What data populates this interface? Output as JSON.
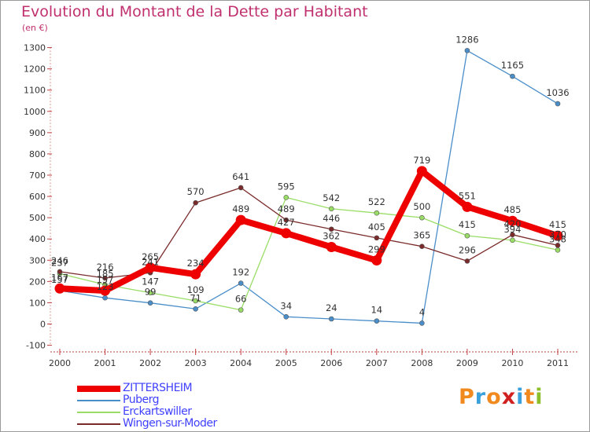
{
  "header": {
    "title": "Evolution du Montant de la Dette par Habitant",
    "unit": "(en €)"
  },
  "logo": {
    "text": "Proxiti",
    "colors": [
      "#f08a1e",
      "#3aa0dc",
      "#f08a1e",
      "#d02020",
      "#3aa0dc",
      "#f08a1e",
      "#8cbf2a"
    ]
  },
  "chart_data": {
    "type": "line",
    "x": [
      "2000",
      "2001",
      "2002",
      "2003",
      "2004",
      "2005",
      "2006",
      "2007",
      "2008",
      "2009",
      "2010",
      "2011"
    ],
    "ylim": [
      -100,
      1300
    ],
    "yticks": [
      -100,
      0,
      100,
      200,
      300,
      400,
      500,
      600,
      700,
      800,
      900,
      1000,
      1100,
      1200,
      1300
    ],
    "grid": false,
    "legend": "bottom-left",
    "series": [
      {
        "name": "ZITTERSHEIM",
        "color": "#ee0000",
        "values": [
          167,
          157,
          265,
          234,
          489,
          427,
          362,
          299,
          719,
          551,
          485,
          415
        ],
        "labels": [
          "167",
          "157",
          "265",
          "234",
          "489",
          "427",
          "362",
          "299",
          "719",
          "551",
          "485",
          "415"
        ]
      },
      {
        "name": "Puberg",
        "color": "#4a8ec9",
        "values": [
          157,
          123,
          99,
          71,
          192,
          34,
          24,
          14,
          4,
          1286,
          1165,
          1036
        ],
        "labels": [
          "157",
          "123",
          "99",
          "71",
          "192",
          "34",
          "24",
          "14",
          "4",
          "1286",
          "1165",
          "1036"
        ]
      },
      {
        "name": "Erckartswiller",
        "color": "#99dd66",
        "values": [
          237,
          185,
          147,
          109,
          66,
          595,
          542,
          522,
          500,
          415,
          394,
          348
        ],
        "labels": [
          "237",
          "185",
          "147",
          "109",
          "66",
          "595",
          "542",
          "522",
          "500",
          "415",
          "394",
          "348"
        ]
      },
      {
        "name": "Wingen-sur-Moder",
        "color": "#7a2a2a",
        "values": [
          246,
          216,
          241,
          570,
          641,
          489,
          446,
          405,
          365,
          296,
          420,
          370
        ],
        "labels": [
          "246",
          "216",
          "241",
          "570",
          "641",
          "489",
          "446",
          "405",
          "365",
          "296",
          "420",
          "370"
        ]
      }
    ]
  }
}
